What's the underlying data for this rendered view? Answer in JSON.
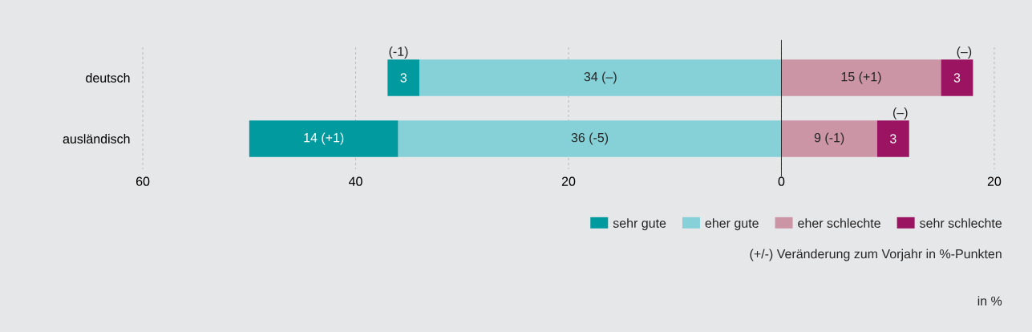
{
  "chart_data": {
    "type": "bar",
    "orientation": "horizontal",
    "categories": [
      "deutsch",
      "ausländisch"
    ],
    "series": [
      {
        "name": "sehr gute",
        "color": "#009a9f",
        "values": [
          3,
          14
        ],
        "base": [
          -37,
          -50
        ],
        "value_labels": [
          "3",
          "14 (+1)"
        ]
      },
      {
        "name": "eher gute",
        "color": "#86d1d8",
        "values": [
          34,
          36
        ],
        "base": [
          -34,
          -36
        ],
        "value_labels": [
          "34 (–)",
          "36 (-5)"
        ]
      },
      {
        "name": "eher schlechte",
        "color": "#cc95a6",
        "values": [
          15,
          9
        ],
        "base": [
          0,
          0
        ],
        "value_labels": [
          "15 (+1)",
          "9 (-1)"
        ]
      },
      {
        "name": "sehr schlechte",
        "color": "#9b1461",
        "values": [
          3,
          3
        ],
        "base": [
          15,
          9
        ],
        "value_labels": [
          "3",
          "3"
        ]
      }
    ],
    "xlim": [
      -60,
      20
    ],
    "xticks": [
      {
        "value": -60,
        "label": "60"
      },
      {
        "value": -40,
        "label": "40"
      },
      {
        "value": -20,
        "label": "20"
      },
      0,
      20
    ],
    "grid": "x",
    "legend": "bottom",
    "ref_lines": [
      {
        "axis": "x",
        "value": 0,
        "color": "#000000",
        "line_style": "solid"
      }
    ],
    "annotations": [
      {
        "text": "(-1)",
        "x": -37,
        "y": "deutsch"
      },
      {
        "text": "(–)",
        "x": 18,
        "y": "deutsch"
      },
      {
        "text": "(–)",
        "x": 12,
        "y": "ausländisch"
      },
      "(+/-) Veränderung zum Vorjahr in %-Punkten",
      "in %"
    ]
  }
}
